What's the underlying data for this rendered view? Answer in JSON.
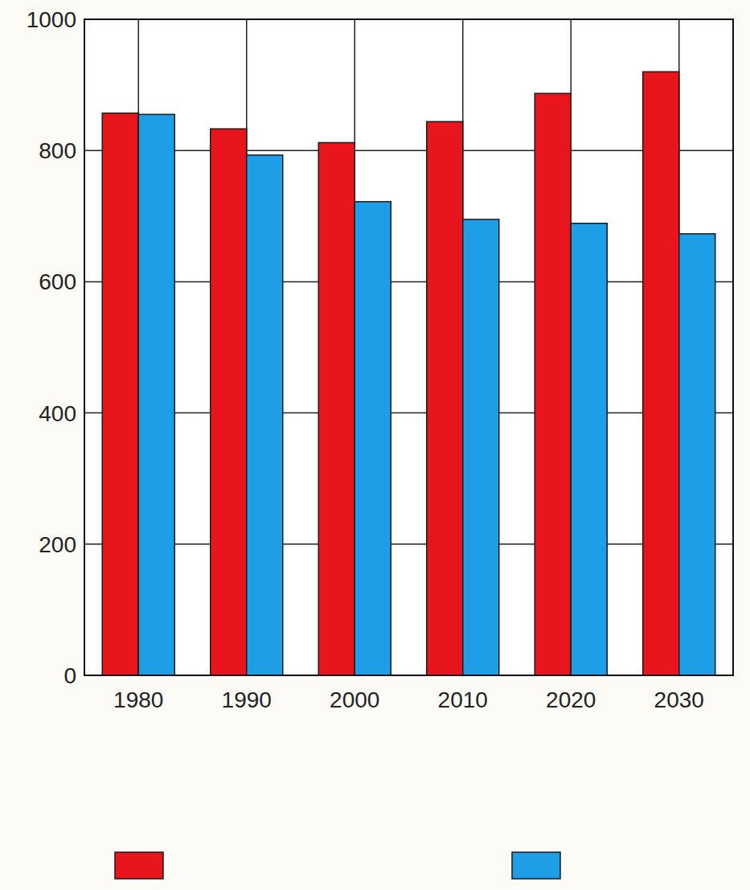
{
  "chart_data": {
    "type": "bar",
    "categories": [
      "1980",
      "1990",
      "2000",
      "2010",
      "2020",
      "2030"
    ],
    "series": [
      {
        "color": "#e8161c",
        "values": [
          857,
          833,
          812,
          844,
          887,
          920
        ]
      },
      {
        "color": "#1e9ee6",
        "values": [
          855,
          793,
          722,
          695,
          689,
          673
        ]
      }
    ],
    "ylim": [
      0,
      1000
    ],
    "yticks": [
      0,
      200,
      400,
      600,
      800,
      1000
    ],
    "grid": true,
    "legend": "bottom"
  }
}
